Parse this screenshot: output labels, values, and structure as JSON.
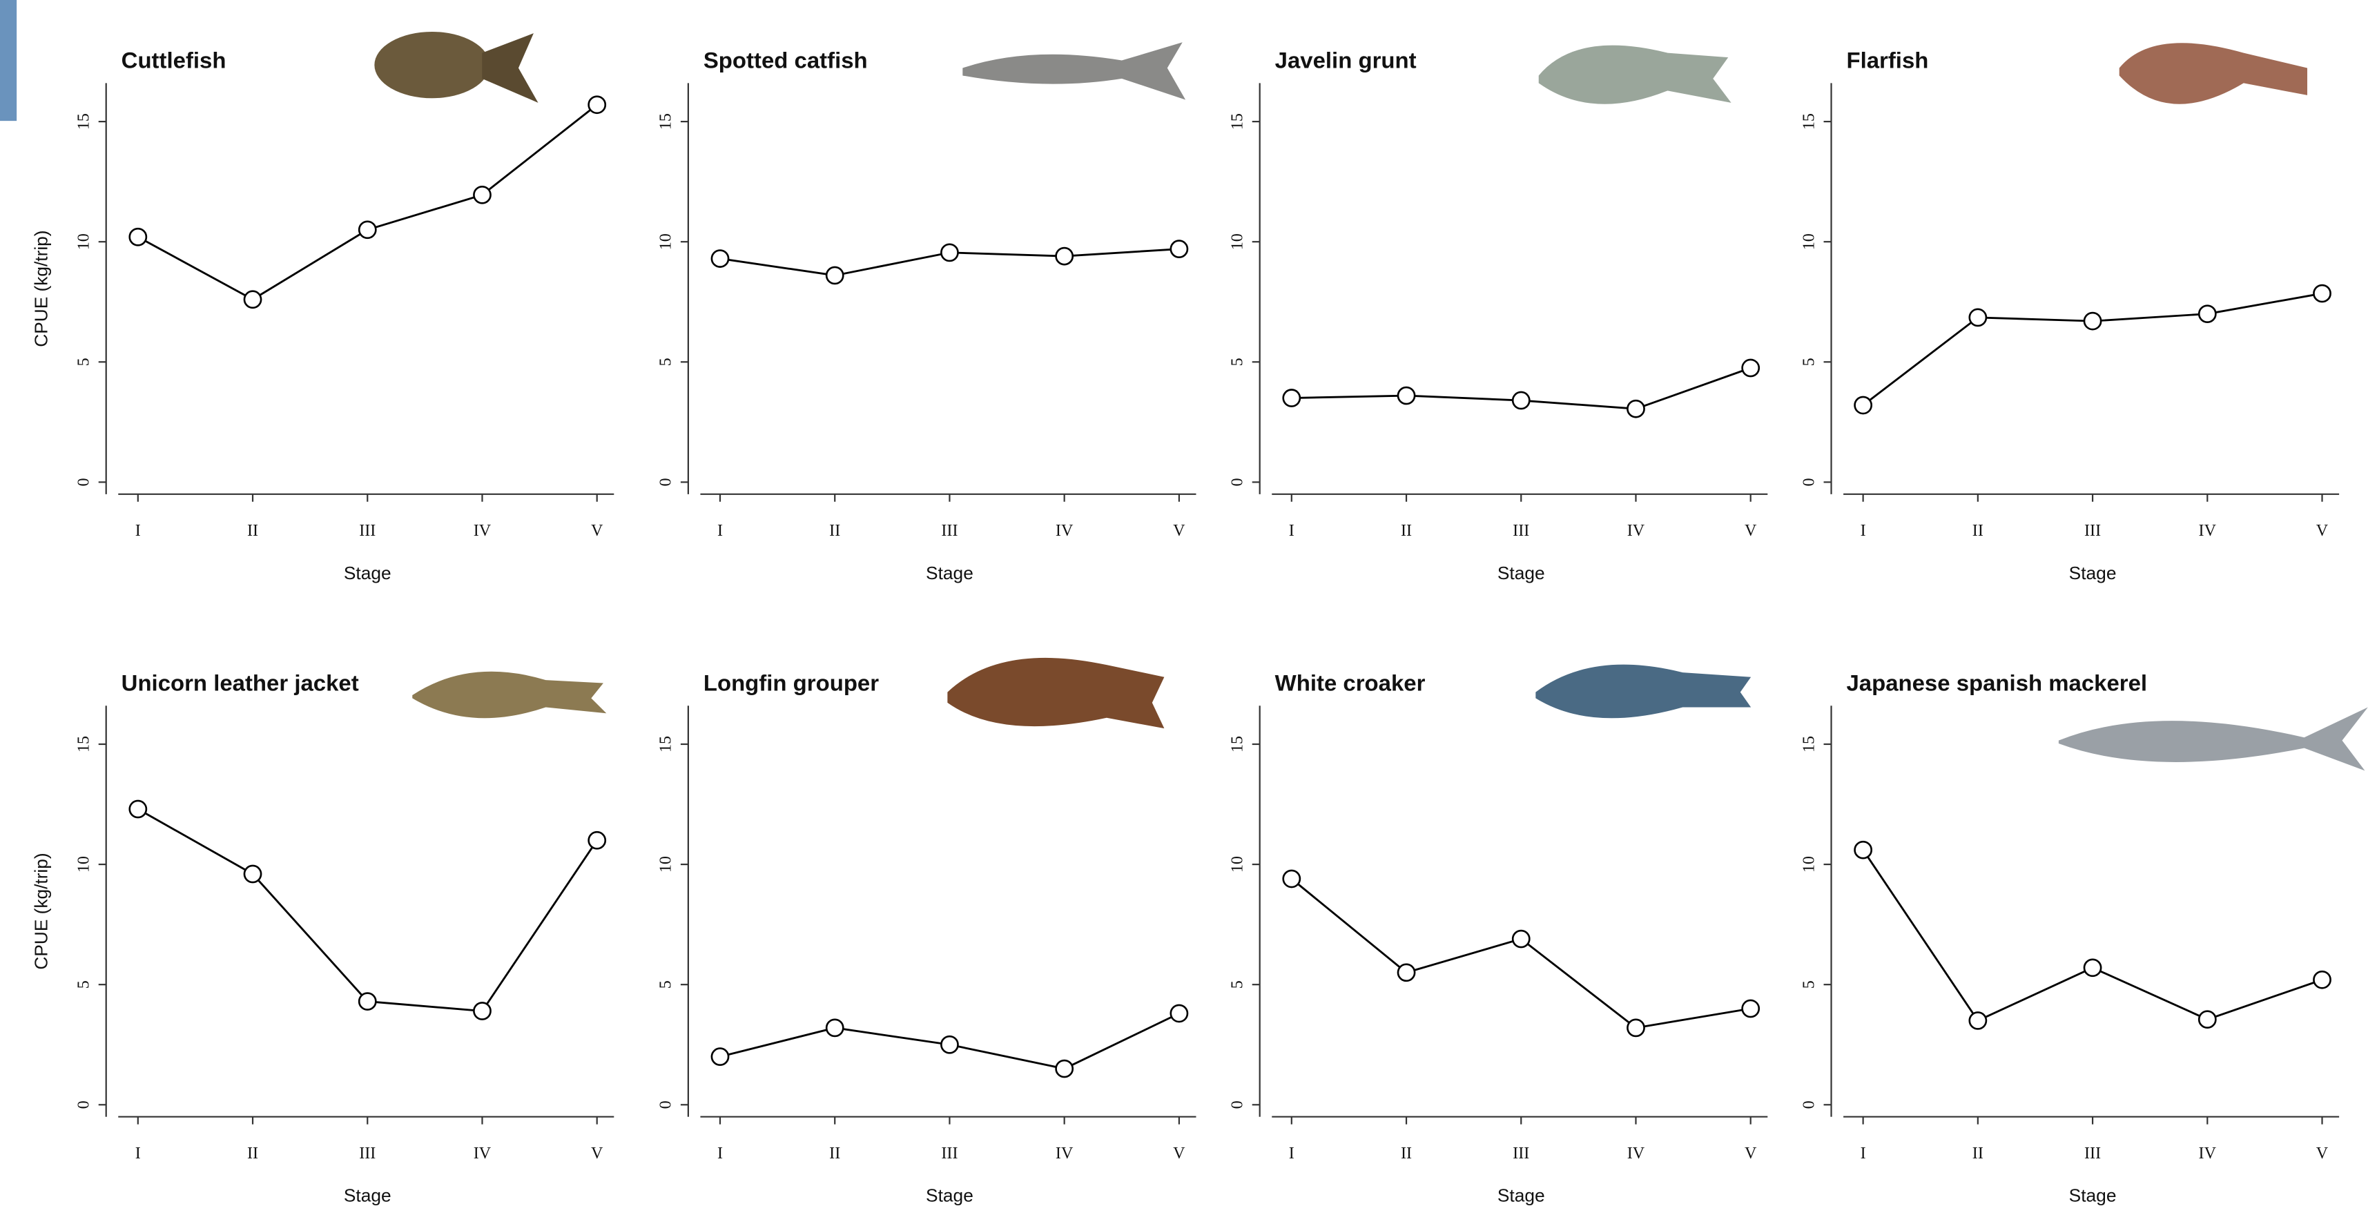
{
  "chart_data": [
    {
      "type": "line",
      "title": "Cuttlefish",
      "categories": [
        "I",
        "II",
        "III",
        "IV",
        "V"
      ],
      "values": [
        10.2,
        7.6,
        10.5,
        11.95,
        15.7
      ],
      "ylim": [
        -0.5,
        16.6
      ],
      "yticks": [
        0,
        5,
        10,
        15
      ],
      "xlabel": "Stage",
      "ylabel": "CPUE (kg/trip)",
      "color": "#000000"
    },
    {
      "type": "line",
      "title": "Spotted catfish",
      "categories": [
        "I",
        "II",
        "III",
        "IV",
        "V"
      ],
      "values": [
        9.3,
        8.6,
        9.55,
        9.4,
        9.7
      ],
      "ylim": [
        -0.5,
        16.6
      ],
      "yticks": [
        0,
        5,
        10,
        15
      ],
      "xlabel": "Stage",
      "color": "#000000"
    },
    {
      "type": "line",
      "title": "Javelin grunt",
      "categories": [
        "I",
        "II",
        "III",
        "IV",
        "V"
      ],
      "values": [
        3.5,
        3.6,
        3.4,
        3.05,
        4.75
      ],
      "ylim": [
        -0.5,
        16.6
      ],
      "yticks": [
        0,
        5,
        10,
        15
      ],
      "xlabel": "Stage",
      "color": "#000000"
    },
    {
      "type": "line",
      "title": "Flarfish",
      "categories": [
        "I",
        "II",
        "III",
        "IV",
        "V"
      ],
      "values": [
        3.2,
        6.85,
        6.7,
        7.0,
        7.85
      ],
      "ylim": [
        -0.5,
        16.6
      ],
      "yticks": [
        0,
        5,
        10,
        15
      ],
      "xlabel": "Stage",
      "color": "#000000"
    },
    {
      "type": "line",
      "title": "Unicorn leather jacket",
      "categories": [
        "I",
        "II",
        "III",
        "IV",
        "V"
      ],
      "values": [
        12.3,
        9.6,
        4.3,
        3.9,
        11.0
      ],
      "ylim": [
        -0.5,
        16.6
      ],
      "yticks": [
        0,
        5,
        10,
        15
      ],
      "xlabel": "Stage",
      "ylabel": "CPUE (kg/trip)",
      "color": "#000000"
    },
    {
      "type": "line",
      "title": "Longfin grouper",
      "categories": [
        "I",
        "II",
        "III",
        "IV",
        "V"
      ],
      "values": [
        2.0,
        3.2,
        2.5,
        1.5,
        3.8
      ],
      "ylim": [
        -0.5,
        16.6
      ],
      "yticks": [
        0,
        5,
        10,
        15
      ],
      "xlabel": "Stage",
      "color": "#000000"
    },
    {
      "type": "line",
      "title": "White croaker",
      "categories": [
        "I",
        "II",
        "III",
        "IV",
        "V"
      ],
      "values": [
        9.4,
        5.5,
        6.9,
        3.2,
        4.0
      ],
      "ylim": [
        -0.5,
        16.6
      ],
      "yticks": [
        0,
        5,
        10,
        15
      ],
      "xlabel": "Stage",
      "color": "#000000"
    },
    {
      "type": "line",
      "title": "Japanese spanish mackerel",
      "categories": [
        "I",
        "II",
        "III",
        "IV",
        "V"
      ],
      "values": [
        10.6,
        3.5,
        5.7,
        3.55,
        5.2
      ],
      "ylim": [
        -0.5,
        16.6
      ],
      "yticks": [
        0,
        5,
        10,
        15
      ],
      "xlabel": "Stage",
      "color": "#000000"
    }
  ]
}
